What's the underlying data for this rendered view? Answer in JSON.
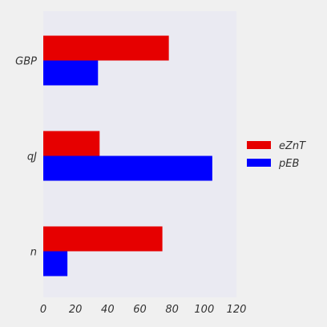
{
  "chart_data": {
    "type": "bar",
    "orientation": "horizontal",
    "categories": [
      "GBP",
      "qJ",
      "n"
    ],
    "series": [
      {
        "name": "eZnT",
        "values": [
          78,
          35,
          74
        ],
        "color": "#e60000"
      },
      {
        "name": "pEB",
        "values": [
          34,
          105,
          15
        ],
        "color": "#0000ff"
      }
    ],
    "xlim": [
      0,
      120
    ],
    "xticks": [
      0,
      20,
      40,
      60,
      80,
      100,
      120
    ],
    "title": "",
    "xlabel": "",
    "ylabel": "",
    "grid": false,
    "legend_position": "right"
  },
  "colors": {
    "plot_background": "#eaeaf2",
    "page_background": "#f0f0f0"
  }
}
